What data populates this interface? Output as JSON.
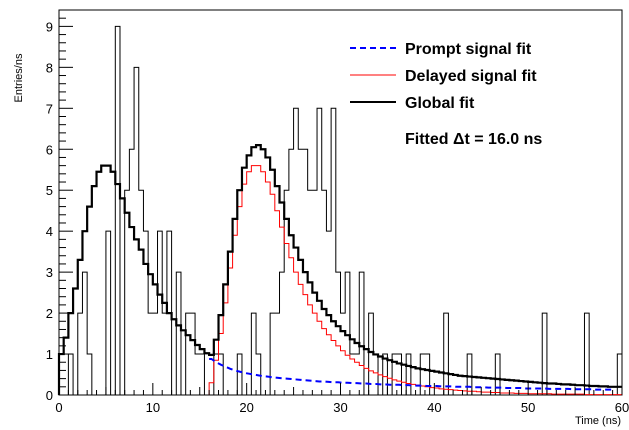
{
  "chart_data": {
    "type": "line",
    "xlabel": "Time (ns)",
    "ylabel": "Entries/ns",
    "xlim": [
      0,
      60
    ],
    "ylim": [
      0,
      9.4
    ],
    "x_ticks": [
      0,
      10,
      20,
      30,
      40,
      50,
      60
    ],
    "y_ticks": [
      0,
      1,
      2,
      3,
      4,
      5,
      6,
      7,
      8,
      9
    ],
    "grid": false,
    "legend_position": "top-right",
    "legend": [
      {
        "label": "Prompt signal fit",
        "color": "#0000ff",
        "style": "dashed"
      },
      {
        "label": "Delayed signal fit",
        "color": "#ff0000",
        "style": "solid"
      },
      {
        "label": "Global fit",
        "color": "#000000",
        "style": "solid-thick"
      }
    ],
    "annotation": "Fitted Δt = 16.0 ns",
    "bin_width": 0.5,
    "data_histogram": [
      0,
      0,
      1,
      0,
      2,
      3,
      1,
      0,
      0,
      0,
      4,
      0,
      9,
      0,
      5,
      6,
      8,
      5,
      4,
      2,
      2,
      4,
      2,
      4,
      0,
      3,
      0,
      2,
      2,
      1,
      1,
      0,
      0,
      1,
      1,
      0,
      0,
      0,
      1,
      0,
      0,
      2,
      1,
      0,
      0,
      2,
      2,
      3,
      5,
      6,
      7,
      6,
      6,
      5,
      5,
      7,
      5,
      4,
      7,
      3,
      2,
      3,
      1,
      1,
      3,
      0,
      2,
      1,
      0,
      1,
      0,
      1,
      1,
      0,
      1,
      0,
      0,
      1,
      1,
      0,
      0,
      0,
      2,
      0,
      0,
      0,
      0,
      1,
      0,
      0,
      0,
      0,
      0,
      1,
      0,
      0,
      0,
      0,
      0,
      0,
      0,
      0,
      0,
      2,
      0,
      0,
      0,
      0,
      0,
      0,
      0,
      0,
      2,
      0,
      0,
      0,
      0,
      0,
      0,
      1
    ],
    "series": [
      {
        "name": "Global fit",
        "color": "#000000",
        "values": [
          1.0,
          1.4,
          2.0,
          2.6,
          3.3,
          4.0,
          4.6,
          5.1,
          5.45,
          5.6,
          5.6,
          5.45,
          5.15,
          4.8,
          4.45,
          4.1,
          3.8,
          3.55,
          3.2,
          2.95,
          2.7,
          2.45,
          2.25,
          2.0,
          1.85,
          1.7,
          1.58,
          1.46,
          1.34,
          1.22,
          1.12,
          1.02,
          0.98,
          1.35,
          1.95,
          2.7,
          3.5,
          4.3,
          5.0,
          5.55,
          5.85,
          6.05,
          6.1,
          6.0,
          5.8,
          5.5,
          5.1,
          4.7,
          4.3,
          3.9,
          3.6,
          3.3,
          3.0,
          2.75,
          2.5,
          2.3,
          2.1,
          1.95,
          1.8,
          1.68,
          1.56,
          1.46,
          1.36,
          1.27,
          1.19,
          1.12,
          1.05,
          0.99,
          0.94,
          0.89,
          0.85,
          0.81,
          0.77,
          0.74,
          0.71,
          0.68,
          0.65,
          0.63,
          0.61,
          0.59,
          0.57,
          0.55,
          0.53,
          0.51,
          0.49,
          0.47,
          0.46,
          0.45,
          0.44,
          0.43,
          0.42,
          0.41,
          0.4,
          0.39,
          0.38,
          0.37,
          0.36,
          0.35,
          0.34,
          0.33,
          0.32,
          0.31,
          0.3,
          0.29,
          0.28,
          0.28,
          0.27,
          0.26,
          0.26,
          0.25,
          0.24,
          0.24,
          0.23,
          0.22,
          0.22,
          0.21,
          0.21,
          0.2,
          0.2,
          0.2
        ]
      },
      {
        "name": "Delayed signal fit",
        "color": "#ff0000",
        "values": [
          0,
          0,
          0,
          0,
          0,
          0,
          0,
          0,
          0,
          0,
          0,
          0,
          0,
          0,
          0,
          0,
          0,
          0,
          0,
          0,
          0,
          0,
          0,
          0,
          0,
          0,
          0,
          0,
          0,
          0,
          0,
          0,
          0.3,
          0.85,
          1.5,
          2.25,
          3.1,
          3.9,
          4.6,
          5.15,
          5.45,
          5.6,
          5.6,
          5.45,
          5.2,
          4.9,
          4.5,
          4.1,
          3.7,
          3.35,
          3.0,
          2.7,
          2.45,
          2.2,
          2.0,
          1.8,
          1.62,
          1.47,
          1.33,
          1.2,
          1.08,
          0.97,
          0.88,
          0.8,
          0.72,
          0.65,
          0.59,
          0.54,
          0.49,
          0.45,
          0.41,
          0.37,
          0.34,
          0.31,
          0.28,
          0.26,
          0.24,
          0.22,
          0.2,
          0.18,
          0.17,
          0.15,
          0.14,
          0.13,
          0.12,
          0.11,
          0.1,
          0.09,
          0.09,
          0.08,
          0.07,
          0.07,
          0.06,
          0.06,
          0.05,
          0.05,
          0.05,
          0.04,
          0.04,
          0.04,
          0.03,
          0.03,
          0.03,
          0.03,
          0.03,
          0.02,
          0.02,
          0.02,
          0.02,
          0.02,
          0.02,
          0.02,
          0.01,
          0.01,
          0.01,
          0.01,
          0.01,
          0.01,
          0.01,
          0.01
        ]
      },
      {
        "name": "Prompt signal fit",
        "color": "#0000ff",
        "x_from": 16.0,
        "values": [
          0.88,
          0.8,
          0.74,
          0.69,
          0.64,
          0.6,
          0.57,
          0.54,
          0.52,
          0.5,
          0.48,
          0.46,
          0.45,
          0.43,
          0.42,
          0.41,
          0.4,
          0.39,
          0.38,
          0.37,
          0.36,
          0.35,
          0.34,
          0.33,
          0.33,
          0.32,
          0.31,
          0.31,
          0.3,
          0.3,
          0.29,
          0.29,
          0.28,
          0.28,
          0.27,
          0.27,
          0.26,
          0.26,
          0.25,
          0.25,
          0.25,
          0.24,
          0.24,
          0.23,
          0.23,
          0.23,
          0.22,
          0.22,
          0.22,
          0.21,
          0.21,
          0.21,
          0.2,
          0.2,
          0.2,
          0.2,
          0.19,
          0.19,
          0.19,
          0.18,
          0.18,
          0.18,
          0.18,
          0.17,
          0.17,
          0.17,
          0.17,
          0.16,
          0.16,
          0.16,
          0.16,
          0.16,
          0.15,
          0.15,
          0.15,
          0.15,
          0.15,
          0.14,
          0.14,
          0.14,
          0.14,
          0.14,
          0.13,
          0.13,
          0.13,
          0.13,
          0.13
        ]
      }
    ]
  }
}
